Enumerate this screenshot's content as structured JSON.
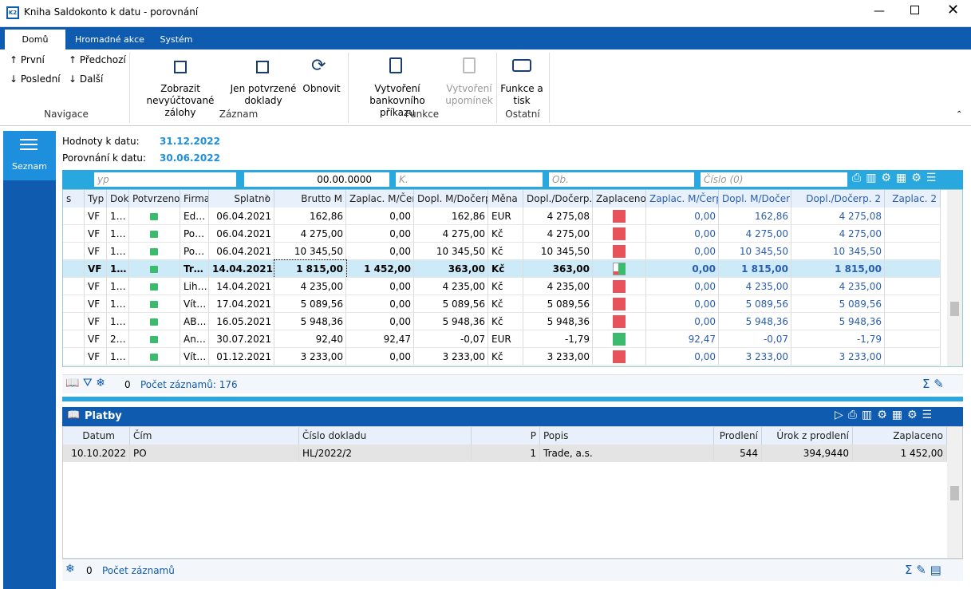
{
  "window": {
    "title": "Kniha Saldokonto k datu - porovnání"
  },
  "tabs": [
    "Domů",
    "Hromadné akce",
    "Systém"
  ],
  "ribbon": {
    "navigace": {
      "buttons": [
        "První",
        "Předchozí",
        "Poslední",
        "Další"
      ],
      "label": "Navigace"
    },
    "zaznam": {
      "buttons": [
        "Zobrazit nevyúčtované zálohy",
        "Jen potvrzené doklady",
        "Obnovit"
      ],
      "label": "Záznam"
    },
    "funkce": {
      "buttons": [
        "Vytvoření bankovního příkazu",
        "Vytvoření upomínek"
      ],
      "label": "Funkce"
    },
    "ostatni": {
      "buttons": [
        "Funkce a tisk"
      ],
      "label": "Ostatní"
    }
  },
  "sidebar": {
    "item": "Seznam"
  },
  "info": [
    {
      "label": "Hodnoty k datu:",
      "value": "31.12.2022"
    },
    {
      "label": "Porovnání k datu:",
      "value": "30.06.2022"
    }
  ],
  "filter": {
    "typ": "yp",
    "date": "00.00.0000",
    "k": "K.",
    "ob": "Ob.",
    "cislo": "Číslo (0)"
  },
  "main_table": {
    "columns": [
      "s",
      "Typ",
      "Dokl",
      "Potvrzeno",
      "Firma",
      "Splatno",
      "Brutto M",
      "Zaplac. M/Čer",
      "Dopl. M/Dočerp",
      "Měna",
      "Dopl./Dočerp.",
      "Zaplaceno",
      "Zaplac. M/Čerp",
      "Dopl. M/Dočerp",
      "Dopl./Dočerp. 2",
      "Zaplac. 2"
    ],
    "sort_index": "2",
    "rows": [
      {
        "cells": [
          "VF",
          "1…",
          "Ed…",
          "06.04.2021",
          "162,86",
          "0,00",
          "162,86",
          "EUR",
          "4 275,08",
          "0,00",
          "162,86",
          "4 275,08"
        ],
        "paid_color": "#e8525a"
      },
      {
        "cells": [
          "VF",
          "1…",
          "Po…",
          "06.04.2021",
          "4 275,00",
          "0,00",
          "4 275,00",
          "Kč",
          "4 275,00",
          "0,00",
          "4 275,00",
          "4 275,00"
        ],
        "paid_color": "#e8525a"
      },
      {
        "cells": [
          "VF",
          "1…",
          "Po…",
          "06.04.2021",
          "10 345,50",
          "0,00",
          "10 345,50",
          "Kč",
          "10 345,50",
          "0,00",
          "10 345,50",
          "10 345,50"
        ],
        "paid_color": "#e8525a"
      },
      {
        "cells": [
          "VF",
          "1…",
          "Tr…",
          "14.04.2021",
          "1 815,00",
          "1 452,00",
          "363,00",
          "Kč",
          "363,00",
          "0,00",
          "1 815,00",
          "1 815,00"
        ],
        "paid_color": "#3cba6e",
        "selected": true
      },
      {
        "cells": [
          "VF",
          "1…",
          "Lih…",
          "14.04.2021",
          "4 235,00",
          "0,00",
          "4 235,00",
          "Kč",
          "4 235,00",
          "0,00",
          "4 235,00",
          "4 235,00"
        ],
        "paid_color": "#e8525a"
      },
      {
        "cells": [
          "VF",
          "1…",
          "Vít…",
          "17.04.2021",
          "5 089,56",
          "0,00",
          "5 089,56",
          "Kč",
          "5 089,56",
          "0,00",
          "5 089,56",
          "5 089,56"
        ],
        "paid_color": "#e8525a"
      },
      {
        "cells": [
          "VF",
          "1…",
          "AB…",
          "16.05.2021",
          "5 948,36",
          "0,00",
          "5 948,36",
          "Kč",
          "5 948,36",
          "0,00",
          "5 948,36",
          "5 948,36"
        ],
        "paid_color": "#e8525a"
      },
      {
        "cells": [
          "VF",
          "2…",
          "An…",
          "30.07.2021",
          "92,40",
          "92,47",
          "-0,07",
          "EUR",
          "-1,79",
          "92,47",
          "-0,07",
          "-1,79"
        ],
        "paid_color": "#3cba6e"
      },
      {
        "cells": [
          "VF",
          "1…",
          "Vít…",
          "01.12.2021",
          "3 233,00",
          "0,00",
          "3 233,00",
          "Kč",
          "3 233,00",
          "0,00",
          "3 233,00",
          "3 233,00"
        ],
        "paid_color": "#e8525a"
      }
    ],
    "status": {
      "count_icon": "0",
      "records": "Počet záznamů: 176"
    }
  },
  "payments": {
    "title": "Platby",
    "columns": [
      "Datum",
      "Čím",
      "Číslo dokladu",
      "P",
      "Popis",
      "Prodlení",
      "Úrok z prodlení",
      "Zaplaceno"
    ],
    "rows": [
      [
        "10.10.2022",
        "PO",
        "HL/2022/2",
        "1",
        "Trade, a.s.",
        "544",
        "394,9440",
        "1 452,00"
      ]
    ],
    "status": {
      "count_icon": "0",
      "records": "Počet záznamů"
    }
  }
}
